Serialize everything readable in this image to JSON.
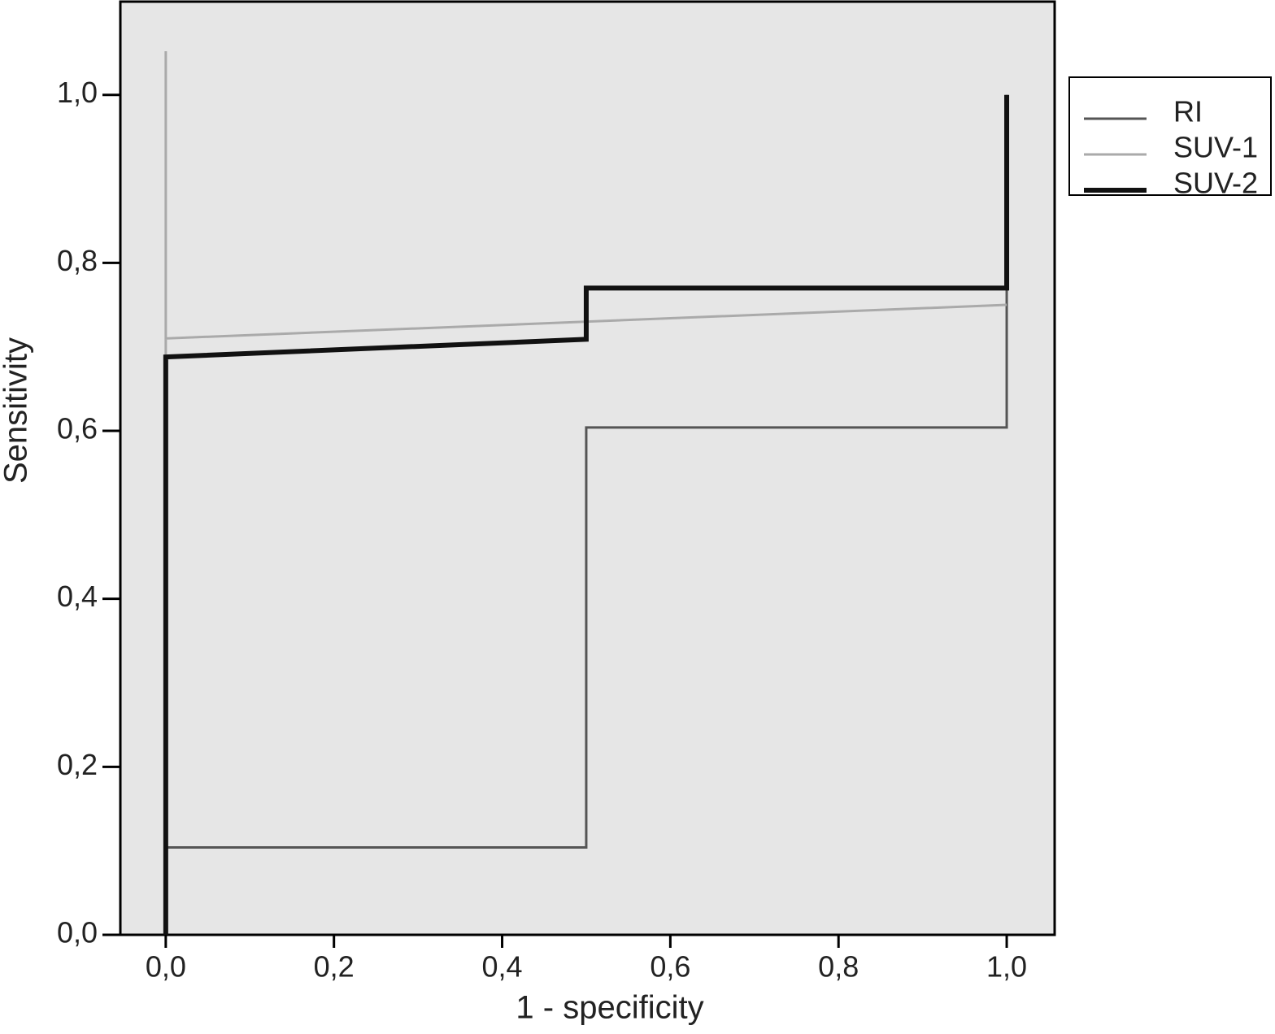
{
  "chart_data": {
    "type": "line",
    "xlabel": "1 - specificity",
    "ylabel": "Sensitivity",
    "xlim": [
      -0.054,
      1.057
    ],
    "ylim": [
      0,
      1.111
    ],
    "xticks": [
      {
        "value": 0,
        "label": "0,0"
      },
      {
        "value": 0.2,
        "label": "0,2"
      },
      {
        "value": 0.4,
        "label": "0,4"
      },
      {
        "value": 0.6,
        "label": "0,6"
      },
      {
        "value": 0.8,
        "label": "0,8"
      },
      {
        "value": 1,
        "label": "1,0"
      }
    ],
    "yticks": [
      {
        "value": 0,
        "label": "0,0"
      },
      {
        "value": 0.2,
        "label": "0,2"
      },
      {
        "value": 0.4,
        "label": "0,4"
      },
      {
        "value": 0.6,
        "label": "0,6"
      },
      {
        "value": 0.8,
        "label": "0,8"
      },
      {
        "value": 1,
        "label": "1,0"
      }
    ],
    "legend": "right",
    "series": [
      {
        "name": "RI",
        "color": "#555555",
        "width": 3,
        "x": [
          0,
          0,
          0.5,
          0.5,
          1,
          1
        ],
        "values": [
          0,
          0.104,
          0.104,
          0.604,
          0.604,
          1
        ]
      },
      {
        "name": "SUV-1",
        "color": "#aaaaaa",
        "width": 3,
        "x": [
          0,
          0,
          0,
          1
        ],
        "values": [
          0,
          1.052,
          0.71,
          0.75
        ]
      },
      {
        "name": "SUV-2",
        "color": "#111111",
        "width": 6,
        "x": [
          0,
          0,
          0.5,
          0.5,
          1,
          1
        ],
        "values": [
          0,
          0.688,
          0.709,
          0.77,
          0.77,
          1
        ]
      }
    ]
  }
}
